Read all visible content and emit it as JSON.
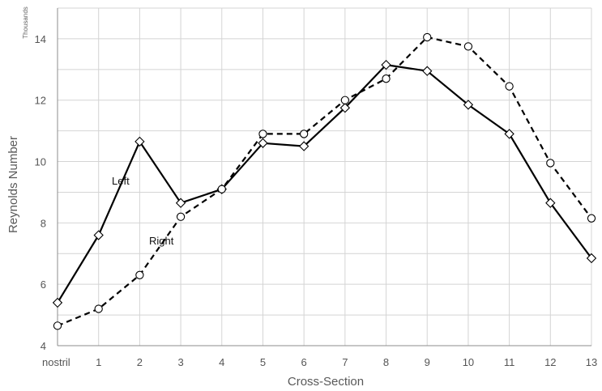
{
  "chart_data": {
    "type": "line",
    "xlabel": "Cross-Section",
    "ylabel": "Reynolds Number",
    "y_unit": "Thousands",
    "categories": [
      "nostril",
      "1",
      "2",
      "3",
      "4",
      "5",
      "6",
      "7",
      "8",
      "9",
      "10",
      "11",
      "12",
      "13"
    ],
    "ylim": [
      4,
      15
    ],
    "yticks": [
      4,
      6,
      8,
      10,
      12,
      14
    ],
    "grid": true,
    "legend": "none",
    "series": [
      {
        "name": "Left",
        "style": "solid",
        "marker": "diamond",
        "values": [
          5.4,
          7.6,
          10.65,
          8.65,
          9.1,
          10.6,
          10.5,
          11.75,
          13.15,
          12.95,
          11.85,
          10.9,
          8.65,
          6.85
        ]
      },
      {
        "name": "Right",
        "style": "dashed",
        "marker": "circle",
        "values": [
          4.65,
          5.2,
          6.3,
          8.2,
          9.1,
          10.9,
          10.9,
          12.0,
          12.7,
          14.05,
          13.75,
          12.45,
          9.95,
          8.15
        ]
      }
    ],
    "annotations": [
      {
        "text": "Left",
        "series": 0
      },
      {
        "text": "Right",
        "series": 1
      }
    ]
  }
}
